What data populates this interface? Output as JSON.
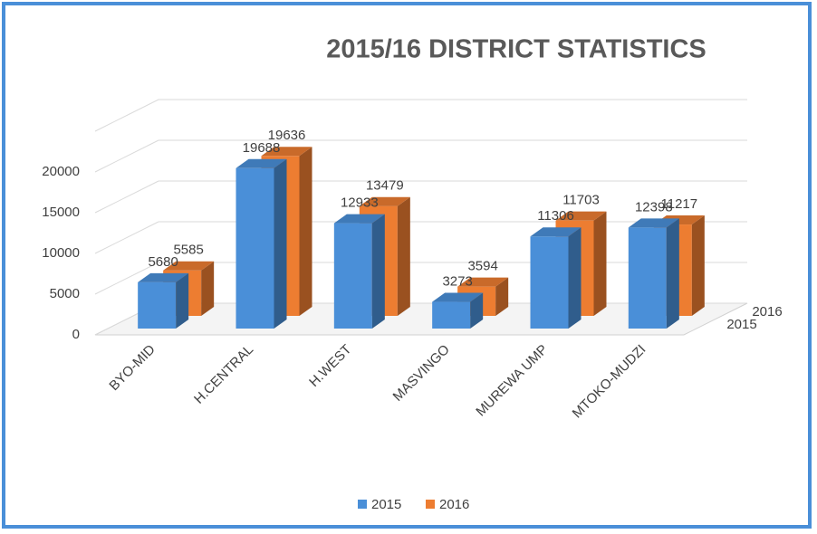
{
  "chart_data": {
    "type": "bar3d",
    "title": "2015/16 DISTRICT STATISTICS",
    "categories": [
      "BYO-MID",
      "H.CENTRAL",
      "H.WEST",
      "MASVINGO",
      "MUREWA UMP",
      "MTOKO-MUDZI"
    ],
    "series": [
      {
        "name": "2015",
        "color": "#4a8fd8",
        "values": [
          5680,
          19688,
          12933,
          3273,
          11306,
          12398
        ]
      },
      {
        "name": "2016",
        "color": "#ed7d31",
        "values": [
          5585,
          19636,
          13479,
          3594,
          11703,
          11217
        ]
      }
    ],
    "ylim": [
      0,
      25000
    ],
    "yticks": [
      0,
      5000,
      10000,
      15000,
      20000
    ],
    "grid": true,
    "legend": "bottom"
  }
}
